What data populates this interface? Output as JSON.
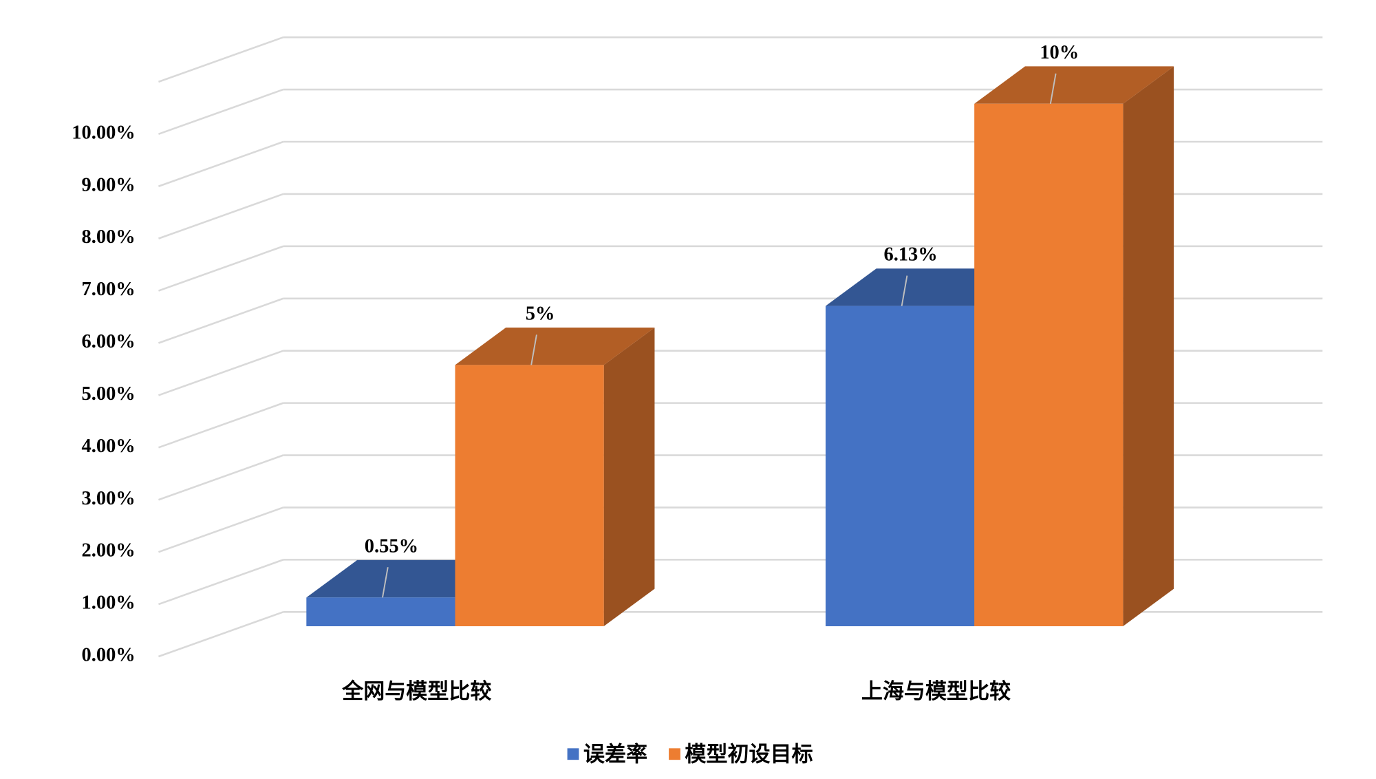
{
  "chart_data": {
    "type": "bar3d",
    "categories": [
      "全网与模型比较",
      "上海与模型比较"
    ],
    "series": [
      {
        "name": "误差率",
        "color": "#4472c4",
        "values": [
          0.55,
          6.13
        ],
        "value_labels": [
          "0.55%",
          "6.13%"
        ]
      },
      {
        "name": "模型初设目标",
        "color": "#ed7d31",
        "values": [
          5,
          10
        ],
        "value_labels": [
          "5%",
          "10%"
        ]
      }
    ],
    "ylim": [
      0,
      11
    ],
    "yticks": [
      {
        "value": 0,
        "label": "0.00%"
      },
      {
        "value": 1,
        "label": "1.00%"
      },
      {
        "value": 2,
        "label": "2.00%"
      },
      {
        "value": 3,
        "label": "3.00%"
      },
      {
        "value": 4,
        "label": "4.00%"
      },
      {
        "value": 5,
        "label": "5.00%"
      },
      {
        "value": 6,
        "label": "6.00%"
      },
      {
        "value": 7,
        "label": "7.00%"
      },
      {
        "value": 8,
        "label": "8.00%"
      },
      {
        "value": 9,
        "label": "9.00%"
      },
      {
        "value": 10,
        "label": "10.00%"
      }
    ],
    "grid": true,
    "legend": "bottom"
  }
}
